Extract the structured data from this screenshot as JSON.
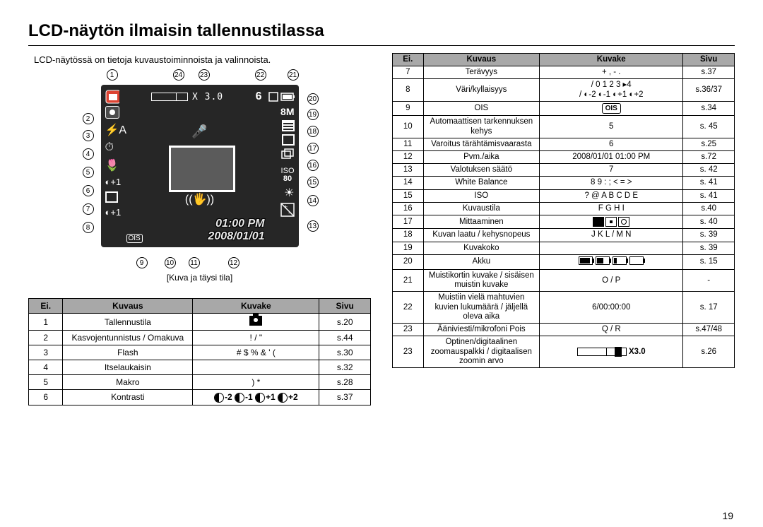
{
  "page": {
    "title": "LCD-näytön ilmaisin tallennustilassa",
    "subtitle": "LCD-näytössä on tietoja kuvaustoiminnoista ja valinnoista.",
    "caption": "[Kuva ja täysi tila]",
    "page_number": "19"
  },
  "lcd": {
    "zoom": "X 3.0",
    "shots": "6",
    "iso_label": "ISO",
    "iso_value": "80",
    "time": "01:00 PM",
    "date": "2008/01/01",
    "contrast_label": "+1",
    "saturation_label": "+1",
    "size_label": "8M"
  },
  "callouts_top": {
    "1": "1",
    "24": "24",
    "23": "23",
    "22": "22",
    "21": "21"
  },
  "callouts_left": {
    "2": "2",
    "3": "3",
    "4": "4",
    "5": "5",
    "6": "6",
    "7": "7",
    "8": "8"
  },
  "callouts_right": {
    "20": "20",
    "19": "19",
    "18": "18",
    "17": "17",
    "16": "16",
    "15": "15",
    "14": "14",
    "13": "13"
  },
  "callouts_bottom": {
    "9": "9",
    "10": "10",
    "11": "11",
    "12": "12"
  },
  "table_headers": {
    "no": "Ei.",
    "desc": "Kuvaus",
    "icon": "Kuvake",
    "page": "Sivu"
  },
  "table_left": [
    {
      "no": "1",
      "desc": "Tallennustila",
      "icon": "camera",
      "page": "s.20"
    },
    {
      "no": "2",
      "desc": "Kasvojentunnistus / Omakuva",
      "icon": "! / \"",
      "page": "s.44"
    },
    {
      "no": "3",
      "desc": "Flash",
      "icon": "# $ % & ' (",
      "page": "s.30"
    },
    {
      "no": "4",
      "desc": "Itselaukaisin",
      "icon": "",
      "page": "s.32"
    },
    {
      "no": "5",
      "desc": "Makro",
      "icon": ")   *",
      "page": "s.28"
    },
    {
      "no": "6",
      "desc": "Kontrasti",
      "icon": "contrast",
      "page": "s.37"
    }
  ],
  "table_right": [
    {
      "no": "7",
      "desc": "Terävyys",
      "icon": "+ , - .",
      "page": "s.37"
    },
    {
      "no": "8",
      "desc": "Väri/kyllaisyys",
      "icon2": "/ 0 1 2 3          ▸4",
      "icon": "/ ◐-2 ◐-1 ◐+1 ◐+2",
      "page": "s.36/37"
    },
    {
      "no": "9",
      "desc": "OIS",
      "icon": "ois",
      "page": "s.34"
    },
    {
      "no": "10",
      "desc": "Automaattisen tarkennuksen kehys",
      "icon": "5",
      "page": "s. 45"
    },
    {
      "no": "11",
      "desc": "Varoitus tärähtämisvaarasta",
      "icon": "6",
      "page": "s.25"
    },
    {
      "no": "12",
      "desc": "Pvm./aika",
      "icon": "2008/01/01  01:00  PM",
      "page": "s.72"
    },
    {
      "no": "13",
      "desc": "Valotuksen säätö",
      "icon": "7",
      "page": "s. 42"
    },
    {
      "no": "14",
      "desc": "White Balance",
      "icon": "8  9   :   ;   <  =  >",
      "page": "s. 41"
    },
    {
      "no": "15",
      "desc": "ISO",
      "icon": "?  @  A   B   C   D   E",
      "page": "s. 41"
    },
    {
      "no": "16",
      "desc": "Kuvaustila",
      "icon": "F   G   H   I",
      "page": "s.40"
    },
    {
      "no": "17",
      "desc": "Mittaaminen",
      "icon": "meter",
      "page": "s. 40"
    },
    {
      "no": "18",
      "desc": "Kuvan laatu / kehysnopeus",
      "icon": "J K L     / M N",
      "page": "s. 39"
    },
    {
      "no": "19",
      "desc": "Kuvakoko",
      "icon": "",
      "page": "s. 39"
    },
    {
      "no": "20",
      "desc": "Akku",
      "icon": "battery",
      "page": "s. 15"
    },
    {
      "no": "21",
      "desc": "Muistikortin kuvake / sisäisen muistin kuvake",
      "icon": "O   / P",
      "page": "-"
    },
    {
      "no": "22",
      "desc": "Muistiin vielä mahtuvien kuvien lukumäärä / jäljellä oleva aika",
      "icon": "6/00:00:00",
      "page": "s. 17"
    },
    {
      "no": "23",
      "desc": "Ääniviesti/mikrofoni Pois",
      "icon": "Q / R",
      "page": "s.47/48"
    },
    {
      "no": "23",
      "desc": "Optinen/digitaalinen zoomauspalkki / digitaalisen zoomin arvo",
      "icon": "zoom",
      "icon_text": "X3.0",
      "page": "s.26"
    }
  ],
  "contrast_vals": [
    "-2",
    "-1",
    "+1",
    "+2"
  ]
}
